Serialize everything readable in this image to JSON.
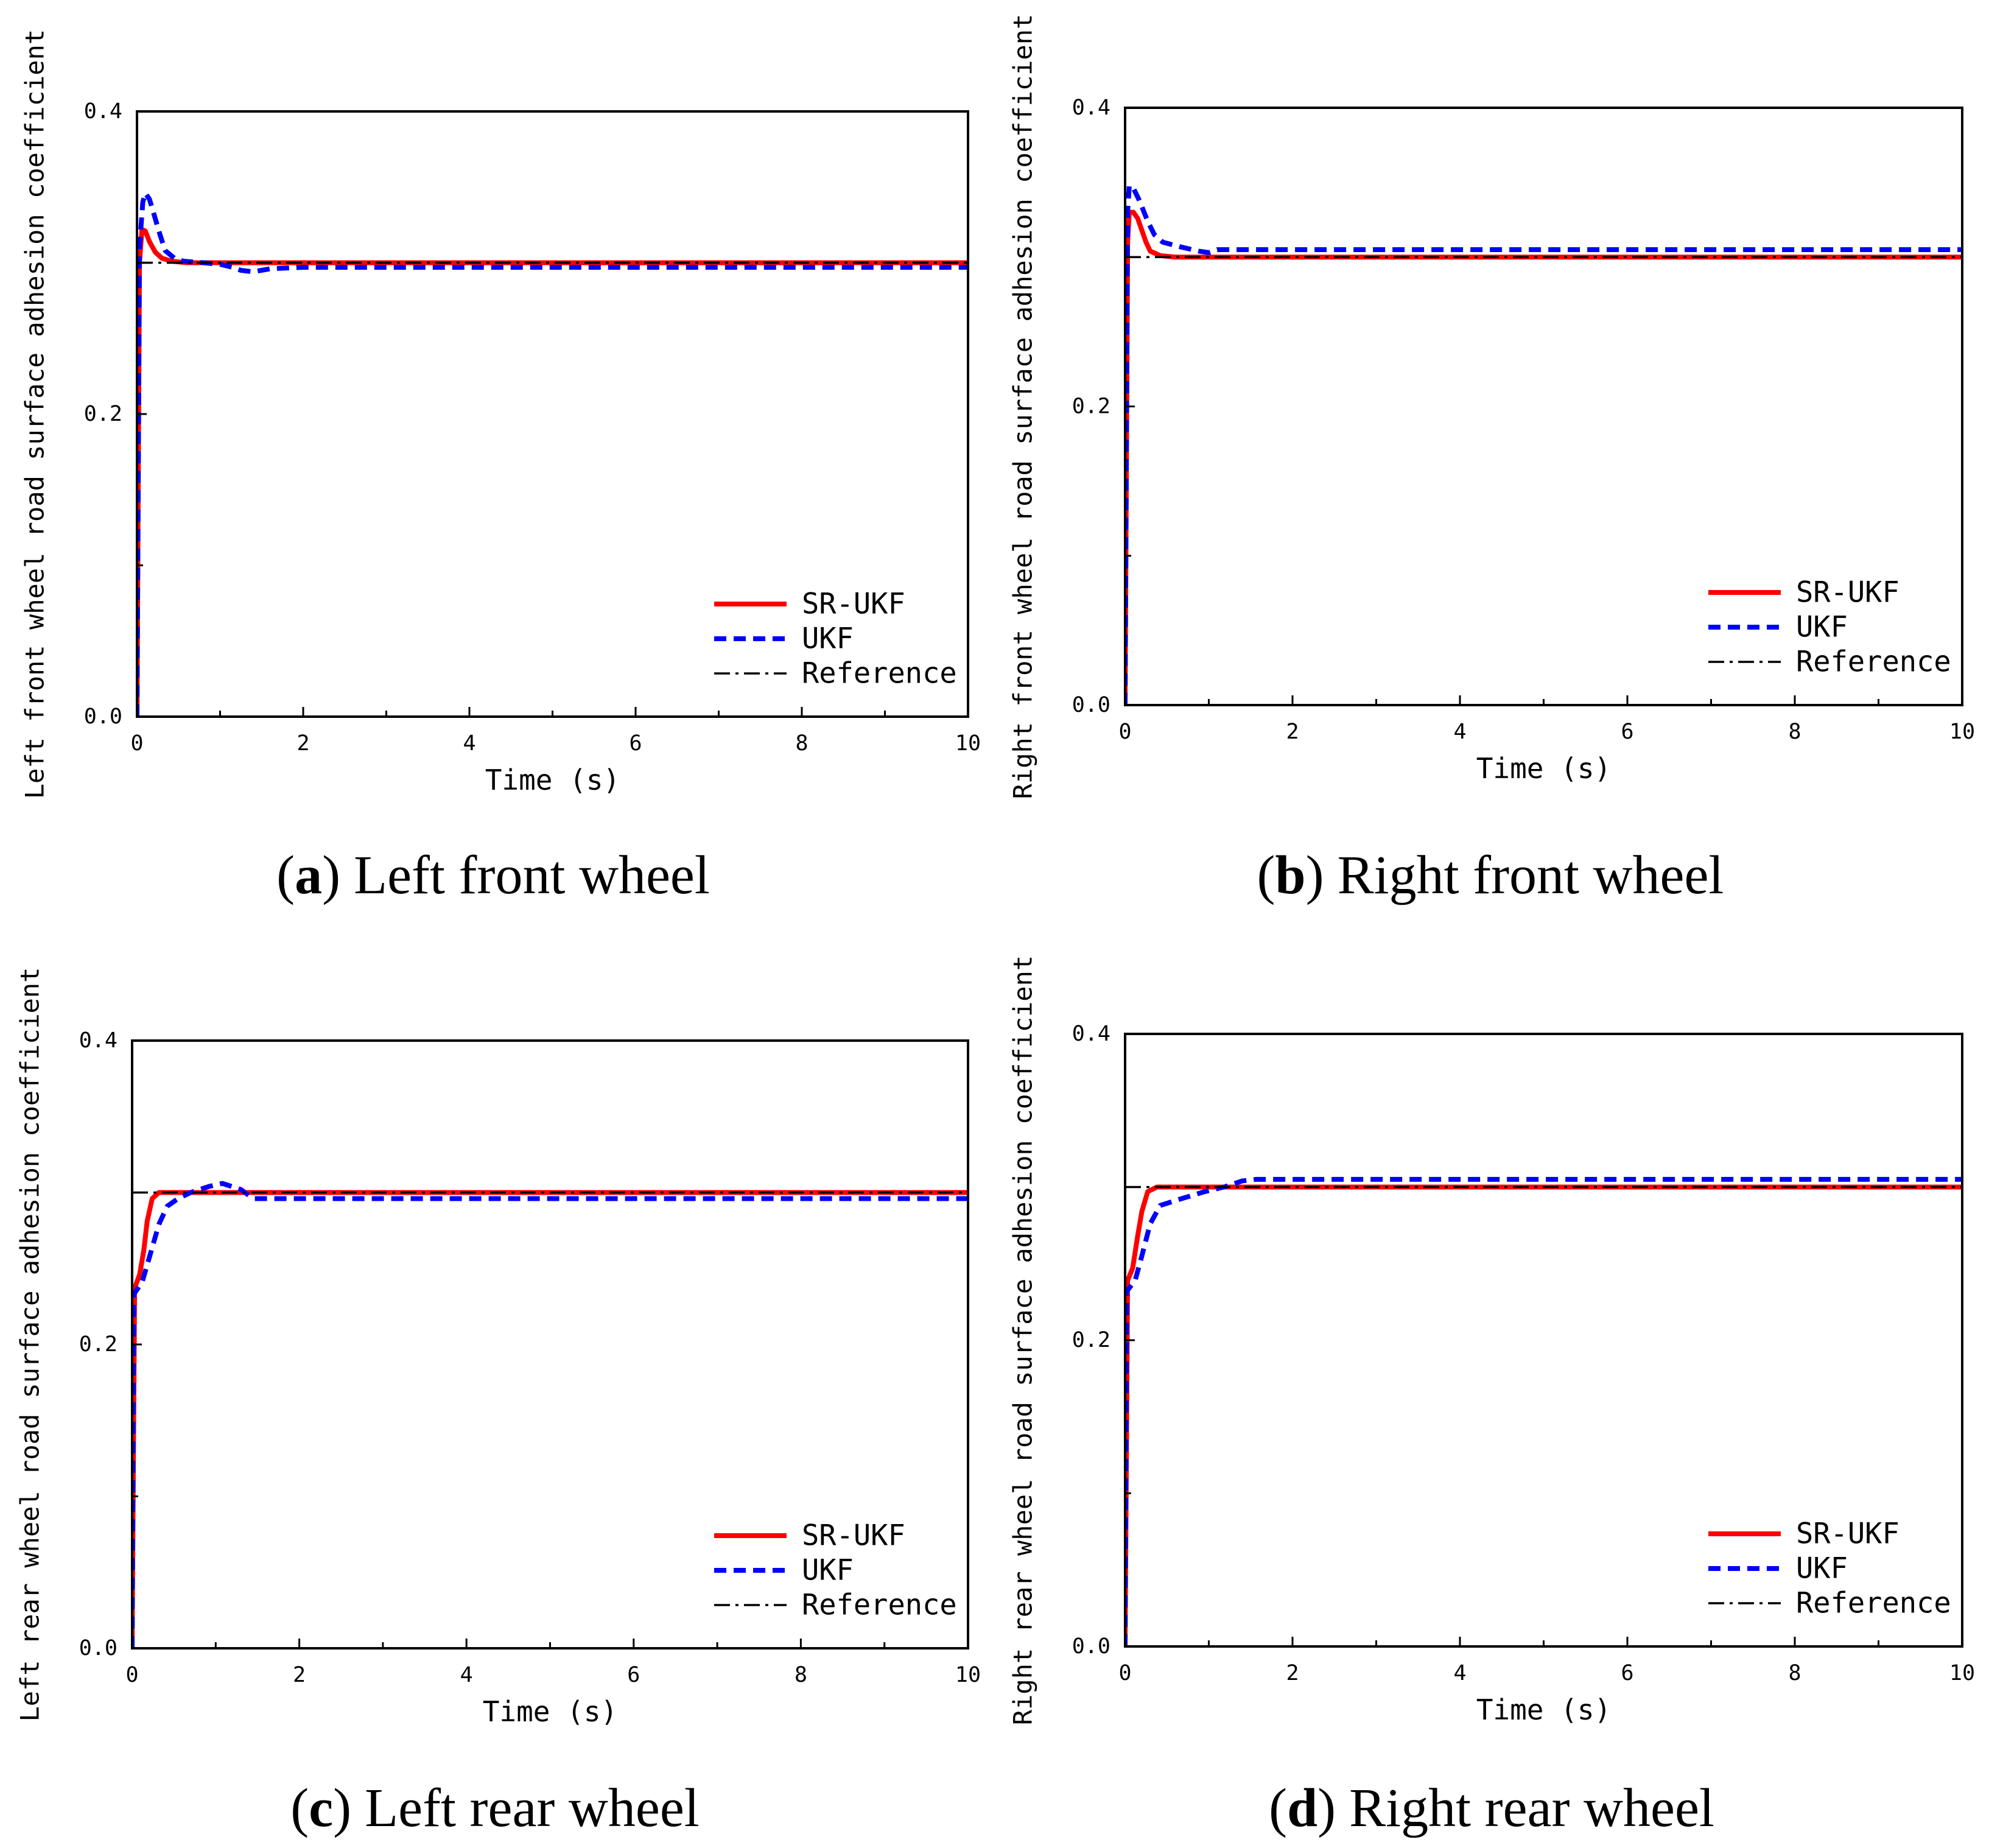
{
  "chart_data": [
    {
      "type": "line",
      "caption_label": "(a)",
      "caption_text": "Left front wheel",
      "xlabel": "Time (s)",
      "ylabel": "Left front wheel road surface adhesion coefficient",
      "xlim": [
        0,
        10
      ],
      "ylim": [
        0,
        0.4
      ],
      "xticks": [
        0,
        2,
        4,
        6,
        8,
        10
      ],
      "xtick_labels": [
        "0",
        "2",
        "4",
        "6",
        "8",
        "10"
      ],
      "yticks": [
        0,
        0.2,
        0.4
      ],
      "ytick_labels": [
        "0.0",
        "0.2",
        "0.4"
      ],
      "grid": false,
      "legend": {
        "placement": "bottom-right"
      },
      "series": [
        {
          "name": "SR-UKF",
          "color": "#ff0000",
          "points": [
            [
              0,
              0
            ],
            [
              0.03,
              0.3
            ],
            [
              0.06,
              0.322
            ],
            [
              0.1,
              0.321
            ],
            [
              0.15,
              0.314
            ],
            [
              0.22,
              0.307
            ],
            [
              0.3,
              0.303
            ],
            [
              0.42,
              0.301
            ],
            [
              0.6,
              0.3
            ],
            [
              10,
              0.3
            ]
          ]
        },
        {
          "name": "UKF",
          "color": "#0000ff",
          "points": [
            [
              0,
              0
            ],
            [
              0.03,
              0.31
            ],
            [
              0.07,
              0.34
            ],
            [
              0.1,
              0.346
            ],
            [
              0.15,
              0.342
            ],
            [
              0.21,
              0.331
            ],
            [
              0.28,
              0.318
            ],
            [
              0.34,
              0.308
            ],
            [
              0.45,
              0.303
            ],
            [
              0.56,
              0.301
            ],
            [
              0.8,
              0.3
            ],
            [
              1.0,
              0.299
            ],
            [
              1.15,
              0.297
            ],
            [
              1.25,
              0.295
            ],
            [
              1.4,
              0.294
            ],
            [
              1.6,
              0.296
            ],
            [
              2.0,
              0.297
            ],
            [
              10,
              0.297
            ]
          ]
        },
        {
          "name": "Reference",
          "color": "#000000",
          "points": [
            [
              0,
              0.3
            ],
            [
              10,
              0.3
            ]
          ]
        }
      ]
    },
    {
      "type": "line",
      "caption_label": "(b)",
      "caption_text": "Right front wheel",
      "xlabel": "Time (s)",
      "ylabel": "Right front wheel road surface adhesion coefficient",
      "xlim": [
        0,
        10
      ],
      "ylim": [
        0,
        0.4
      ],
      "xticks": [
        0,
        2,
        4,
        6,
        8,
        10
      ],
      "xtick_labels": [
        "0",
        "2",
        "4",
        "6",
        "8",
        "10"
      ],
      "yticks": [
        0,
        0.2,
        0.4
      ],
      "ytick_labels": [
        "0.0",
        "0.2",
        "0.4"
      ],
      "grid": false,
      "legend": {
        "placement": "bottom-right"
      },
      "series": [
        {
          "name": "SR-UKF",
          "color": "#ff0000",
          "points": [
            [
              0,
              0
            ],
            [
              0.03,
              0.31
            ],
            [
              0.05,
              0.33
            ],
            [
              0.1,
              0.33
            ],
            [
              0.15,
              0.326
            ],
            [
              0.2,
              0.318
            ],
            [
              0.25,
              0.31
            ],
            [
              0.3,
              0.304
            ],
            [
              0.42,
              0.301
            ],
            [
              0.6,
              0.3
            ],
            [
              10,
              0.3
            ]
          ]
        },
        {
          "name": "UKF",
          "color": "#0000ff",
          "points": [
            [
              0,
              0
            ],
            [
              0.03,
              0.33
            ],
            [
              0.05,
              0.348
            ],
            [
              0.1,
              0.346
            ],
            [
              0.17,
              0.338
            ],
            [
              0.27,
              0.324
            ],
            [
              0.35,
              0.315
            ],
            [
              0.45,
              0.31
            ],
            [
              0.65,
              0.307
            ],
            [
              0.88,
              0.304
            ],
            [
              1.0,
              0.303
            ],
            [
              1.1,
              0.305
            ],
            [
              10,
              0.305
            ]
          ]
        },
        {
          "name": "Reference",
          "color": "#000000",
          "points": [
            [
              0,
              0.3
            ],
            [
              10,
              0.3
            ]
          ]
        }
      ]
    },
    {
      "type": "line",
      "caption_label": "(c)",
      "caption_text": "Left rear wheel",
      "xlabel": "Time (s)",
      "ylabel": "Left rear wheel road surface adhesion coefficient",
      "xlim": [
        0,
        10
      ],
      "ylim": [
        0,
        0.4
      ],
      "xticks": [
        0,
        2,
        4,
        6,
        8,
        10
      ],
      "xtick_labels": [
        "0",
        "2",
        "4",
        "6",
        "8",
        "10"
      ],
      "yticks": [
        0,
        0.2,
        0.4
      ],
      "ytick_labels": [
        "0.0",
        "0.2",
        "0.4"
      ],
      "grid": false,
      "legend": {
        "placement": "bottom-right"
      },
      "series": [
        {
          "name": "SR-UKF",
          "color": "#ff0000",
          "points": [
            [
              0,
              0
            ],
            [
              0.03,
              0.237
            ],
            [
              0.09,
              0.246
            ],
            [
              0.14,
              0.262
            ],
            [
              0.18,
              0.281
            ],
            [
              0.24,
              0.296
            ],
            [
              0.32,
              0.3
            ],
            [
              10,
              0.3
            ]
          ]
        },
        {
          "name": "UKF",
          "color": "#0000ff",
          "points": [
            [
              0,
              0
            ],
            [
              0.02,
              0.233
            ],
            [
              0.12,
              0.241
            ],
            [
              0.21,
              0.258
            ],
            [
              0.32,
              0.279
            ],
            [
              0.42,
              0.291
            ],
            [
              0.55,
              0.296
            ],
            [
              0.7,
              0.3
            ],
            [
              0.92,
              0.304
            ],
            [
              1.08,
              0.306
            ],
            [
              1.3,
              0.302
            ],
            [
              1.45,
              0.296
            ],
            [
              2.0,
              0.296
            ],
            [
              10,
              0.296
            ]
          ]
        },
        {
          "name": "Reference",
          "color": "#000000",
          "points": [
            [
              0,
              0.3
            ],
            [
              10,
              0.3
            ]
          ]
        }
      ]
    },
    {
      "type": "line",
      "caption_label": "(d)",
      "caption_text": "Right rear wheel",
      "xlabel": "Time (s)",
      "ylabel": "Right rear wheel road surface adhesion coefficient",
      "xlim": [
        0,
        10
      ],
      "ylim": [
        0,
        0.4
      ],
      "xticks": [
        0,
        2,
        4,
        6,
        8,
        10
      ],
      "xtick_labels": [
        "0",
        "2",
        "4",
        "6",
        "8",
        "10"
      ],
      "yticks": [
        0,
        0.2,
        0.4
      ],
      "ytick_labels": [
        "0.0",
        "0.2",
        "0.4"
      ],
      "grid": false,
      "legend": {
        "placement": "bottom-right"
      },
      "series": [
        {
          "name": "SR-UKF",
          "color": "#ff0000",
          "points": [
            [
              0,
              0
            ],
            [
              0.03,
              0.239
            ],
            [
              0.09,
              0.247
            ],
            [
              0.15,
              0.268
            ],
            [
              0.2,
              0.284
            ],
            [
              0.27,
              0.297
            ],
            [
              0.38,
              0.3
            ],
            [
              10,
              0.3
            ]
          ]
        },
        {
          "name": "UKF",
          "color": "#0000ff",
          "points": [
            [
              0,
              0
            ],
            [
              0.02,
              0.232
            ],
            [
              0.12,
              0.239
            ],
            [
              0.2,
              0.255
            ],
            [
              0.3,
              0.276
            ],
            [
              0.42,
              0.288
            ],
            [
              0.65,
              0.292
            ],
            [
              0.95,
              0.297
            ],
            [
              1.18,
              0.3
            ],
            [
              1.4,
              0.304
            ],
            [
              1.56,
              0.305
            ],
            [
              10,
              0.305
            ]
          ]
        },
        {
          "name": "Reference",
          "color": "#000000",
          "points": [
            [
              0,
              0.3
            ],
            [
              10,
              0.3
            ]
          ]
        }
      ]
    }
  ]
}
